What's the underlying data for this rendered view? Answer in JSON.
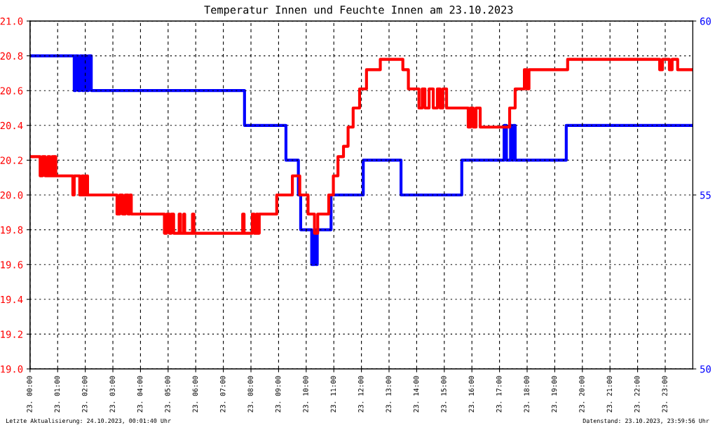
{
  "chart_data": {
    "type": "step",
    "title": "Temperatur Innen und Feuchte Innen am 23.10.2023",
    "series": [
      {
        "color": "#ff0000",
        "x": [
          "2023-10-23T00:00",
          "2023-10-23T00:22",
          "2023-10-23T00:27",
          "2023-10-23T00:33",
          "2023-10-23T00:39",
          "2023-10-23T00:43",
          "2023-10-23T00:48",
          "2023-10-23T00:52",
          "2023-10-23T00:54",
          "2023-10-23T00:56",
          "2023-10-23T01:33",
          "2023-10-23T01:36",
          "2023-10-23T01:48",
          "2023-10-23T01:53",
          "2023-10-23T01:57",
          "2023-10-23T02:01",
          "2023-10-23T02:05",
          "2023-10-23T03:09",
          "2023-10-23T03:15",
          "2023-10-23T03:21",
          "2023-10-23T03:27",
          "2023-10-23T03:33",
          "2023-10-23T03:37",
          "2023-10-23T03:40",
          "2023-10-23T04:52",
          "2023-10-23T04:57",
          "2023-10-23T05:03",
          "2023-10-23T05:07",
          "2023-10-23T05:12",
          "2023-10-23T05:24",
          "2023-10-23T05:27",
          "2023-10-23T05:34",
          "2023-10-23T05:36",
          "2023-10-23T05:53",
          "2023-10-23T05:56",
          "2023-10-23T07:42",
          "2023-10-23T07:45",
          "2023-10-23T08:03",
          "2023-10-23T08:07",
          "2023-10-23T08:12",
          "2023-10-23T08:15",
          "2023-10-23T08:18",
          "2023-10-23T08:56",
          "2023-10-23T09:30",
          "2023-10-23T09:46",
          "2023-10-23T10:04",
          "2023-10-23T10:18",
          "2023-10-23T10:25",
          "2023-10-23T10:49",
          "2023-10-23T10:59",
          "2023-10-23T11:09",
          "2023-10-23T11:21",
          "2023-10-23T11:31",
          "2023-10-23T11:42",
          "2023-10-23T11:56",
          "2023-10-23T12:11",
          "2023-10-23T12:41",
          "2023-10-23T13:30",
          "2023-10-23T13:42",
          "2023-10-23T14:05",
          "2023-10-23T14:12",
          "2023-10-23T14:18",
          "2023-10-23T14:27",
          "2023-10-23T14:36",
          "2023-10-23T14:45",
          "2023-10-23T14:51",
          "2023-10-23T14:57",
          "2023-10-23T15:05",
          "2023-10-23T15:52",
          "2023-10-23T15:57",
          "2023-10-23T16:03",
          "2023-10-23T16:09",
          "2023-10-23T16:18",
          "2023-10-23T17:22",
          "2023-10-23T17:34",
          "2023-10-23T17:54",
          "2023-10-23T17:59",
          "2023-10-23T18:04",
          "2023-10-23T19:28",
          "2023-10-23T22:48",
          "2023-10-23T22:54",
          "2023-10-23T23:09",
          "2023-10-23T23:15",
          "2023-10-23T23:27",
          "2023-10-23T23:59"
        ],
        "values": [
          20.22,
          20.11,
          20.22,
          20.11,
          20.22,
          20.11,
          20.22,
          20.11,
          20.22,
          20.11,
          20.0,
          20.11,
          20.0,
          20.11,
          20.0,
          20.11,
          20.0,
          19.89,
          20.0,
          19.89,
          20.0,
          19.89,
          20.0,
          19.89,
          19.78,
          19.89,
          19.78,
          19.89,
          19.78,
          19.89,
          19.78,
          19.89,
          19.78,
          19.89,
          19.78,
          19.89,
          19.78,
          19.89,
          19.78,
          19.89,
          19.78,
          19.89,
          20.0,
          20.11,
          20.0,
          19.89,
          19.78,
          19.89,
          20.0,
          20.11,
          20.22,
          20.28,
          20.39,
          20.5,
          20.61,
          20.72,
          20.78,
          20.72,
          20.61,
          20.5,
          20.61,
          20.5,
          20.61,
          20.5,
          20.61,
          20.5,
          20.61,
          20.5,
          20.39,
          20.5,
          20.39,
          20.5,
          20.39,
          20.5,
          20.61,
          20.72,
          20.61,
          20.72,
          20.78,
          20.72,
          20.78,
          20.72,
          20.78,
          20.72,
          20.72
        ]
      },
      {
        "color": "#0000ff",
        "axis": "y2",
        "x": [
          "2023-10-23T00:00",
          "2023-10-23T01:36",
          "2023-10-23T01:39",
          "2023-10-23T01:45",
          "2023-10-23T01:49",
          "2023-10-23T01:54",
          "2023-10-23T01:57",
          "2023-10-23T02:03",
          "2023-10-23T02:07",
          "2023-10-23T02:13",
          "2023-10-23T02:20",
          "2023-10-23T07:46",
          "2023-10-23T09:16",
          "2023-10-23T09:43",
          "2023-10-23T09:48",
          "2023-10-23T10:12",
          "2023-10-23T10:18",
          "2023-10-23T10:21",
          "2023-10-23T10:24",
          "2023-10-23T10:54",
          "2023-10-23T12:04",
          "2023-10-23T13:26",
          "2023-10-23T15:38",
          "2023-10-23T17:10",
          "2023-10-23T17:15",
          "2023-10-23T17:24",
          "2023-10-23T17:27",
          "2023-10-23T17:30",
          "2023-10-23T17:34",
          "2023-10-23T19:25",
          "2023-10-23T23:59"
        ],
        "values": [
          59,
          58,
          59,
          58,
          59,
          58,
          59,
          58,
          59,
          58,
          58,
          57,
          56,
          55,
          54,
          53,
          54,
          53,
          54,
          55,
          56,
          55,
          56,
          57,
          56,
          57,
          56,
          57,
          56,
          57,
          57
        ]
      }
    ],
    "xlim": [
      "2023-10-23T00:00",
      "2023-10-24T00:00"
    ],
    "xticks": [
      {
        "value": "2023-10-23T00:00",
        "label": "23. 00:00"
      },
      {
        "value": "2023-10-23T01:00",
        "label": "23. 01:00"
      },
      {
        "value": "2023-10-23T02:00",
        "label": "23. 02:00"
      },
      {
        "value": "2023-10-23T03:00",
        "label": "23. 03:00"
      },
      {
        "value": "2023-10-23T04:00",
        "label": "23. 04:00"
      },
      {
        "value": "2023-10-23T05:00",
        "label": "23. 05:00"
      },
      {
        "value": "2023-10-23T06:00",
        "label": "23. 06:00"
      },
      {
        "value": "2023-10-23T07:00",
        "label": "23. 07:00"
      },
      {
        "value": "2023-10-23T08:00",
        "label": "23. 08:00"
      },
      {
        "value": "2023-10-23T09:00",
        "label": "23. 09:00"
      },
      {
        "value": "2023-10-23T10:00",
        "label": "23. 10:00"
      },
      {
        "value": "2023-10-23T11:00",
        "label": "23. 11:00"
      },
      {
        "value": "2023-10-23T12:00",
        "label": "23. 12:00"
      },
      {
        "value": "2023-10-23T13:00",
        "label": "23. 13:00"
      },
      {
        "value": "2023-10-23T14:00",
        "label": "23. 14:00"
      },
      {
        "value": "2023-10-23T15:00",
        "label": "23. 15:00"
      },
      {
        "value": "2023-10-23T16:00",
        "label": "23. 16:00"
      },
      {
        "value": "2023-10-23T17:00",
        "label": "23. 17:00"
      },
      {
        "value": "2023-10-23T18:00",
        "label": "23. 18:00"
      },
      {
        "value": "2023-10-23T19:00",
        "label": "23. 19:00"
      },
      {
        "value": "2023-10-23T20:00",
        "label": "23. 20:00"
      },
      {
        "value": "2023-10-23T21:00",
        "label": "23. 21:00"
      },
      {
        "value": "2023-10-23T22:00",
        "label": "23. 22:00"
      },
      {
        "value": "2023-10-23T23:00",
        "label": "23. 23:00"
      }
    ],
    "ylim": [
      19.0,
      21.0
    ],
    "yticks": [
      {
        "value": 19.0,
        "label": "19.0"
      },
      {
        "value": 19.2,
        "label": "19.2"
      },
      {
        "value": 19.4,
        "label": "19.4"
      },
      {
        "value": 19.6,
        "label": "19.6"
      },
      {
        "value": 19.8,
        "label": "19.8"
      },
      {
        "value": 20.0,
        "label": "20.0"
      },
      {
        "value": 20.2,
        "label": "20.2"
      },
      {
        "value": 20.4,
        "label": "20.4"
      },
      {
        "value": 20.6,
        "label": "20.6"
      },
      {
        "value": 20.8,
        "label": "20.8"
      },
      {
        "value": 21.0,
        "label": "21.0"
      }
    ],
    "y2lim": [
      50,
      60
    ],
    "y2ticks": [
      50,
      55,
      60
    ],
    "grid": true,
    "annotations": [
      "Letzte Aktualisierung: 24.10.2023, 00:01:40 Uhr",
      "Datenstand: 23.10.2023, 23:59:56 Uhr"
    ]
  }
}
